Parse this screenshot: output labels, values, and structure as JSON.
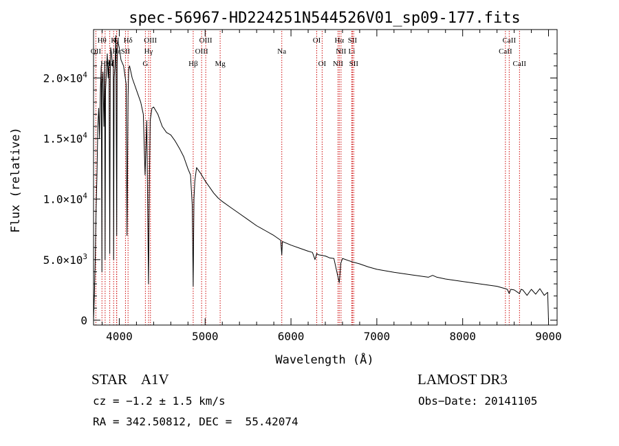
{
  "chart_data": {
    "type": "line",
    "title": "spec-56967-HD224251N544526V01_sp09-177.fits",
    "xlabel": "Wavelength (Å)",
    "ylabel": "Flux (relative)",
    "xlim": [
      3700,
      9100
    ],
    "ylim": [
      -400,
      24000
    ],
    "x_ticks": [
      {
        "value": 4000,
        "label": "4000"
      },
      {
        "value": 5000,
        "label": "5000"
      },
      {
        "value": 6000,
        "label": "6000"
      },
      {
        "value": 7000,
        "label": "7000"
      },
      {
        "value": 8000,
        "label": "8000"
      },
      {
        "value": 9000,
        "label": "9000"
      }
    ],
    "y_ticks": [
      {
        "value": 0,
        "mant": "0",
        "exp": ""
      },
      {
        "value": 5000,
        "mant": "5.0×10",
        "exp": "3"
      },
      {
        "value": 10000,
        "mant": "1.0×10",
        "exp": "4"
      },
      {
        "value": 15000,
        "mant": "1.5×10",
        "exp": "4"
      },
      {
        "value": 20000,
        "mant": "2.0×10",
        "exp": "4"
      }
    ],
    "series": [
      {
        "name": "spectrum",
        "x": [
          3700,
          3710,
          3720,
          3730,
          3740,
          3750,
          3760,
          3770,
          3780,
          3790,
          3798,
          3800,
          3810,
          3820,
          3830,
          3835,
          3840,
          3850,
          3860,
          3870,
          3880,
          3889,
          3895,
          3900,
          3910,
          3920,
          3930,
          3934,
          3940,
          3950,
          3960,
          3970,
          3975,
          3980,
          3990,
          4000,
          4020,
          4050,
          4080,
          4090,
          4102,
          4110,
          4120,
          4150,
          4200,
          4250,
          4280,
          4300,
          4320,
          4340,
          4350,
          4360,
          4380,
          4400,
          4450,
          4500,
          4550,
          4600,
          4650,
          4700,
          4750,
          4800,
          4830,
          4850,
          4861,
          4870,
          4880,
          4900,
          4920,
          4950,
          5000,
          5050,
          5100,
          5150,
          5200,
          5300,
          5400,
          5500,
          5600,
          5700,
          5800,
          5880,
          5893,
          5900,
          6000,
          6100,
          6200,
          6250,
          6280,
          6300,
          6320,
          6400,
          6450,
          6500,
          6540,
          6563,
          6580,
          6600,
          6700,
          6800,
          6900,
          7000,
          7200,
          7400,
          7600,
          7650,
          7700,
          7800,
          8000,
          8200,
          8400,
          8498,
          8520,
          8542,
          8560,
          8600,
          8662,
          8680,
          8700,
          8750,
          8800,
          8850,
          8900,
          8950,
          8990,
          9000
        ],
        "y": [
          0,
          2000,
          5000,
          9000,
          12000,
          16000,
          17500,
          15000,
          19000,
          21000,
          4000,
          19500,
          20500,
          16000,
          21000,
          5000,
          19000,
          20500,
          22000,
          20000,
          21500,
          5500,
          20000,
          22500,
          22000,
          21000,
          21500,
          5000,
          20000,
          21000,
          23500,
          7000,
          21000,
          23000,
          22800,
          22500,
          21500,
          21000,
          19500,
          7000,
          18500,
          20800,
          21000,
          20000,
          19000,
          18000,
          17000,
          12000,
          16500,
          3000,
          11000,
          16500,
          17500,
          17600,
          17000,
          16000,
          15500,
          15300,
          14800,
          14200,
          13500,
          12500,
          12000,
          9500,
          2800,
          10000,
          11500,
          12600,
          12400,
          12100,
          11500,
          11000,
          10500,
          10100,
          9800,
          9300,
          8800,
          8300,
          7800,
          7400,
          7000,
          6600,
          5400,
          6500,
          6200,
          5950,
          5700,
          5600,
          5000,
          5500,
          5400,
          5300,
          5150,
          5100,
          3800,
          3100,
          4700,
          5100,
          4850,
          4650,
          4400,
          4200,
          3950,
          3750,
          3550,
          3700,
          3550,
          3400,
          3200,
          3000,
          2800,
          2600,
          2550,
          2200,
          2550,
          2500,
          2200,
          2550,
          2500,
          2050,
          2550,
          2150,
          2600,
          2050,
          2300,
          0
        ]
      }
    ],
    "emission_lines": [
      {
        "label": "OII",
        "x": 3727,
        "row": 2
      },
      {
        "label": "Hθ",
        "x": 3798,
        "row": 1
      },
      {
        "label": "Hη",
        "x": 3835,
        "row": 3
      },
      {
        "label": "Hζ",
        "x": 3889,
        "row": 3
      },
      {
        "label": "K",
        "x": 3934,
        "row": 1
      },
      {
        "label": "H",
        "x": 3969,
        "row": 1
      },
      {
        "label": "Hε",
        "x": 3970,
        "row": 2
      },
      {
        "label": "SII",
        "x": 4072,
        "row": 2
      },
      {
        "label": "Hδ",
        "x": 4102,
        "row": 1
      },
      {
        "label": "G",
        "x": 4304,
        "row": 3
      },
      {
        "label": "Hγ",
        "x": 4341,
        "row": 2
      },
      {
        "label": "OIII",
        "x": 4363,
        "row": 1
      },
      {
        "label": "Hβ",
        "x": 4861,
        "row": 3
      },
      {
        "label": "OIII",
        "x": 4959,
        "row": 2
      },
      {
        "label": "OIII",
        "x": 5007,
        "row": 1
      },
      {
        "label": "Mg",
        "x": 5175,
        "row": 3
      },
      {
        "label": "Na",
        "x": 5893,
        "row": 2
      },
      {
        "label": "OI",
        "x": 6300,
        "row": 1
      },
      {
        "label": "OI",
        "x": 6363,
        "row": 3
      },
      {
        "label": "NII",
        "x": 6548,
        "row": 3
      },
      {
        "label": "Hα",
        "x": 6563,
        "row": 1
      },
      {
        "label": "NII",
        "x": 6583,
        "row": 2
      },
      {
        "label": "Li",
        "x": 6708,
        "row": 2
      },
      {
        "label": "SII",
        "x": 6716,
        "row": 1
      },
      {
        "label": "SII",
        "x": 6731,
        "row": 3
      },
      {
        "label": "CaII",
        "x": 8498,
        "row": 2
      },
      {
        "label": "CaII",
        "x": 8542,
        "row": 1
      },
      {
        "label": "CaII",
        "x": 8662,
        "row": 3
      }
    ]
  },
  "info": {
    "class_line": "STAR    A1V",
    "cz_line": "cz = −1.2 ± 1.5 km/s",
    "coords_line": "RA = 342.50812, DEC =  55.42074",
    "survey": "LAMOST DR3",
    "obs_date": "Obs−Date: 20141105"
  }
}
